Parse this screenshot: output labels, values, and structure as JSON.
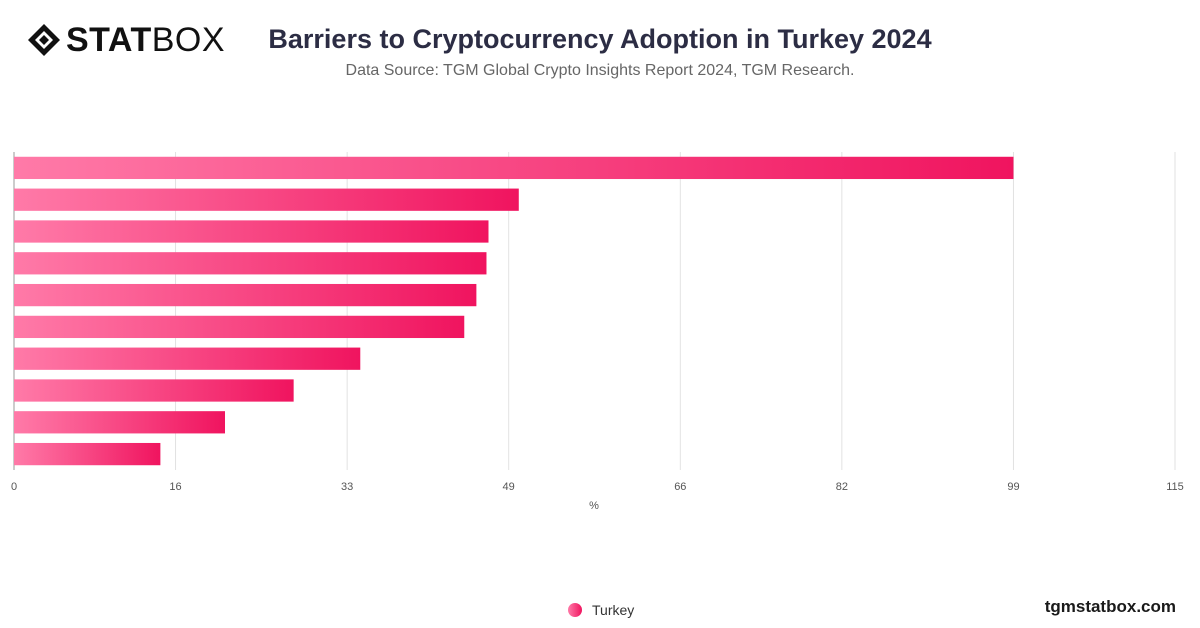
{
  "brand": {
    "logo_bold": "STAT",
    "logo_thin": "BOX",
    "footer": "tgmstatbox.com"
  },
  "header": {
    "title": "Barriers to Cryptocurrency Adoption in Turkey 2024",
    "subtitle": "Data Source: TGM Global Crypto Insights Report 2024, TGM Research."
  },
  "colors": {
    "bar_start": "#ff7aa8",
    "bar_end": "#f0145f",
    "grid": "#e2e2e2"
  },
  "chart_data": {
    "type": "bar",
    "orientation": "horizontal",
    "series": [
      {
        "name": "Turkey",
        "values": [
          99,
          50,
          47,
          46.8,
          45.8,
          44.6,
          34.3,
          27.7,
          20.9,
          14.5
        ]
      }
    ],
    "xlabel": "%",
    "xlim": [
      0,
      115
    ],
    "xticks": [
      0,
      16,
      33,
      49,
      66,
      82,
      99,
      115
    ],
    "grid": true,
    "legend": "bottom-center"
  }
}
